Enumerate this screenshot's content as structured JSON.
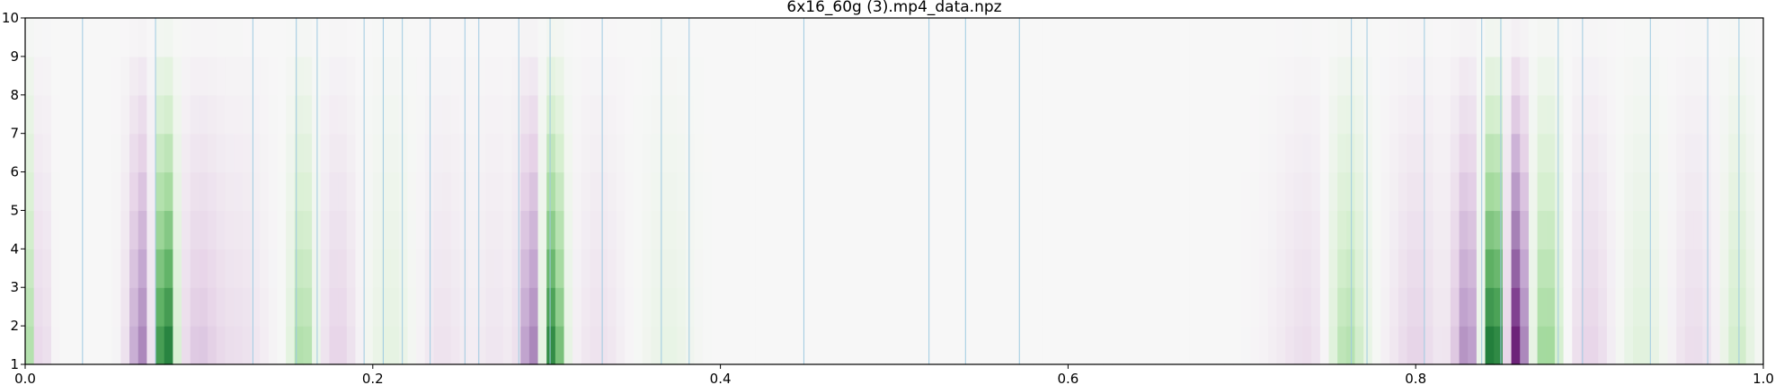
{
  "chart_data": {
    "type": "heatmap",
    "title": "6x16_60g (3).mp4_data.npz",
    "xlabel": "",
    "ylabel": "",
    "xlim": [
      0.0,
      1.0
    ],
    "ylim": [
      1,
      10
    ],
    "x_ticks": [
      "0.0",
      "0.2",
      "0.4",
      "0.6",
      "0.8",
      "1.0"
    ],
    "y_ticks": [
      "1",
      "2",
      "3",
      "4",
      "5",
      "6",
      "7",
      "8",
      "9",
      "10"
    ],
    "colormap": "PRGn",
    "grid": false,
    "legend": "none",
    "rows": 9,
    "cols": 200,
    "features": [
      {
        "x": 0.002,
        "sign": 1,
        "amp": 0.45,
        "width": 0.003
      },
      {
        "x": 0.008,
        "sign": -1,
        "amp": 0.25,
        "width": 0.004
      },
      {
        "x": 0.068,
        "sign": -1,
        "amp": 0.55,
        "width": 0.006
      },
      {
        "x": 0.08,
        "sign": 1,
        "amp": 0.95,
        "width": 0.005
      },
      {
        "x": 0.1,
        "sign": -1,
        "amp": 0.25,
        "width": 0.01
      },
      {
        "x": 0.125,
        "sign": -1,
        "amp": 0.12,
        "width": 0.01
      },
      {
        "x": 0.16,
        "sign": 1,
        "amp": 0.4,
        "width": 0.005
      },
      {
        "x": 0.18,
        "sign": -1,
        "amp": 0.2,
        "width": 0.008
      },
      {
        "x": 0.21,
        "sign": 1,
        "amp": 0.12,
        "width": 0.01
      },
      {
        "x": 0.24,
        "sign": -1,
        "amp": 0.12,
        "width": 0.01
      },
      {
        "x": 0.27,
        "sign": -1,
        "amp": 0.1,
        "width": 0.008
      },
      {
        "x": 0.292,
        "sign": -1,
        "amp": 0.6,
        "width": 0.005
      },
      {
        "x": 0.303,
        "sign": 1,
        "amp": 0.8,
        "width": 0.005
      },
      {
        "x": 0.33,
        "sign": -1,
        "amp": 0.12,
        "width": 0.01
      },
      {
        "x": 0.37,
        "sign": 1,
        "amp": 0.1,
        "width": 0.01
      },
      {
        "x": 0.76,
        "sign": 1,
        "amp": 0.4,
        "width": 0.008
      },
      {
        "x": 0.74,
        "sign": -1,
        "amp": 0.15,
        "width": 0.015
      },
      {
        "x": 0.8,
        "sign": -1,
        "amp": 0.2,
        "width": 0.01
      },
      {
        "x": 0.83,
        "sign": -1,
        "amp": 0.5,
        "width": 0.006
      },
      {
        "x": 0.845,
        "sign": 1,
        "amp": 0.95,
        "width": 0.005
      },
      {
        "x": 0.858,
        "sign": -1,
        "amp": 0.9,
        "width": 0.005
      },
      {
        "x": 0.875,
        "sign": 1,
        "amp": 0.45,
        "width": 0.007
      },
      {
        "x": 0.9,
        "sign": -1,
        "amp": 0.2,
        "width": 0.01
      },
      {
        "x": 0.93,
        "sign": 1,
        "amp": 0.15,
        "width": 0.01
      },
      {
        "x": 0.96,
        "sign": -1,
        "amp": 0.15,
        "width": 0.01
      },
      {
        "x": 0.985,
        "sign": 1,
        "amp": 0.25,
        "width": 0.006
      }
    ],
    "markers": [
      0.033,
      0.075,
      0.131,
      0.156,
      0.168,
      0.195,
      0.206,
      0.217,
      0.233,
      0.253,
      0.261,
      0.284,
      0.302,
      0.332,
      0.366,
      0.382,
      0.448,
      0.52,
      0.541,
      0.572,
      0.763,
      0.772,
      0.805,
      0.838,
      0.849,
      0.882,
      0.896,
      0.935,
      0.968,
      0.986
    ],
    "marker_color": "#9ecae1"
  }
}
